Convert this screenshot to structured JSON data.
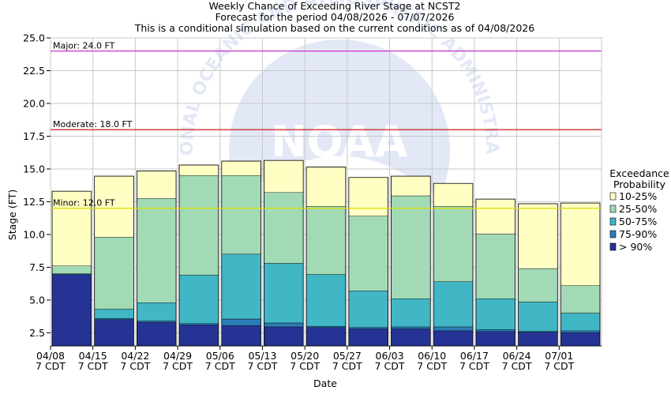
{
  "chart_data": {
    "type": "bar",
    "stacked": true,
    "title": [
      "Weekly Chance of Exceeding River Stage at NCST2",
      "Forecast for the period 04/08/2026 - 07/07/2026",
      "This is a conditional simulation based on the current conditions as of 04/08/2026"
    ],
    "xlabel": "Date",
    "ylabel": "Stage (FT)",
    "ylim": [
      1.5,
      25.0
    ],
    "yticks": [
      "2.5",
      "5.0",
      "7.5",
      "10.0",
      "12.5",
      "15.0",
      "17.5",
      "20.0",
      "22.5",
      "25.0"
    ],
    "categories": [
      [
        "04/08",
        "7 CDT"
      ],
      [
        "04/15",
        "7 CDT"
      ],
      [
        "04/22",
        "7 CDT"
      ],
      [
        "04/29",
        "7 CDT"
      ],
      [
        "05/06",
        "7 CDT"
      ],
      [
        "05/13",
        "7 CDT"
      ],
      [
        "05/20",
        "7 CDT"
      ],
      [
        "05/27",
        "7 CDT"
      ],
      [
        "06/03",
        "7 CDT"
      ],
      [
        "06/10",
        "7 CDT"
      ],
      [
        "06/17",
        "7 CDT"
      ],
      [
        "06/24",
        "7 CDT"
      ],
      [
        "07/01",
        "7 CDT"
      ]
    ],
    "bands_top": {
      "> 90%": [
        6.95,
        3.5,
        3.3,
        3.1,
        3.05,
        2.95,
        2.9,
        2.8,
        2.8,
        2.65,
        2.6,
        2.55,
        2.5
      ],
      "75-90%": [
        7.0,
        3.6,
        3.4,
        3.2,
        3.55,
        3.25,
        3.0,
        2.9,
        2.95,
        2.95,
        2.75,
        2.6,
        2.65
      ],
      "50-75%": [
        7.0,
        4.3,
        4.8,
        6.9,
        8.5,
        7.8,
        6.95,
        5.7,
        5.1,
        6.4,
        5.1,
        4.85,
        4.0
      ],
      "25-50%": [
        7.6,
        9.8,
        12.75,
        14.5,
        14.5,
        13.2,
        12.15,
        11.4,
        12.95,
        12.15,
        10.05,
        7.4,
        6.1
      ],
      "10-25%": [
        13.3,
        14.45,
        14.85,
        15.3,
        15.6,
        15.65,
        15.15,
        14.35,
        14.45,
        13.9,
        12.7,
        12.35,
        12.4
      ]
    },
    "legend": {
      "title": [
        "Exceedance",
        "Probability"
      ],
      "entries": [
        {
          "label": "10-25%",
          "color": "#ffffc4"
        },
        {
          "label": "25-50%",
          "color": "#a2dab5"
        },
        {
          "label": "50-75%",
          "color": "#41b6c4"
        },
        {
          "label": "75-90%",
          "color": "#2b7cb7"
        },
        {
          "label": "> 90%",
          "color": "#253494"
        }
      ]
    },
    "thresholds": [
      {
        "label": "Major: 24.0 FT",
        "value": 24.0,
        "color": "#cc33cc"
      },
      {
        "label": "Moderate: 18.0 FT",
        "value": 18.0,
        "color": "#cc0000"
      },
      {
        "label": "Minor: 12.0 FT",
        "value": 12.0,
        "color": "#dddd00"
      }
    ],
    "watermark": {
      "text": "NOAA",
      "ring_text": "NATIONAL OCEANIC AND ATMOSPHERIC ADMINISTRATION"
    }
  }
}
